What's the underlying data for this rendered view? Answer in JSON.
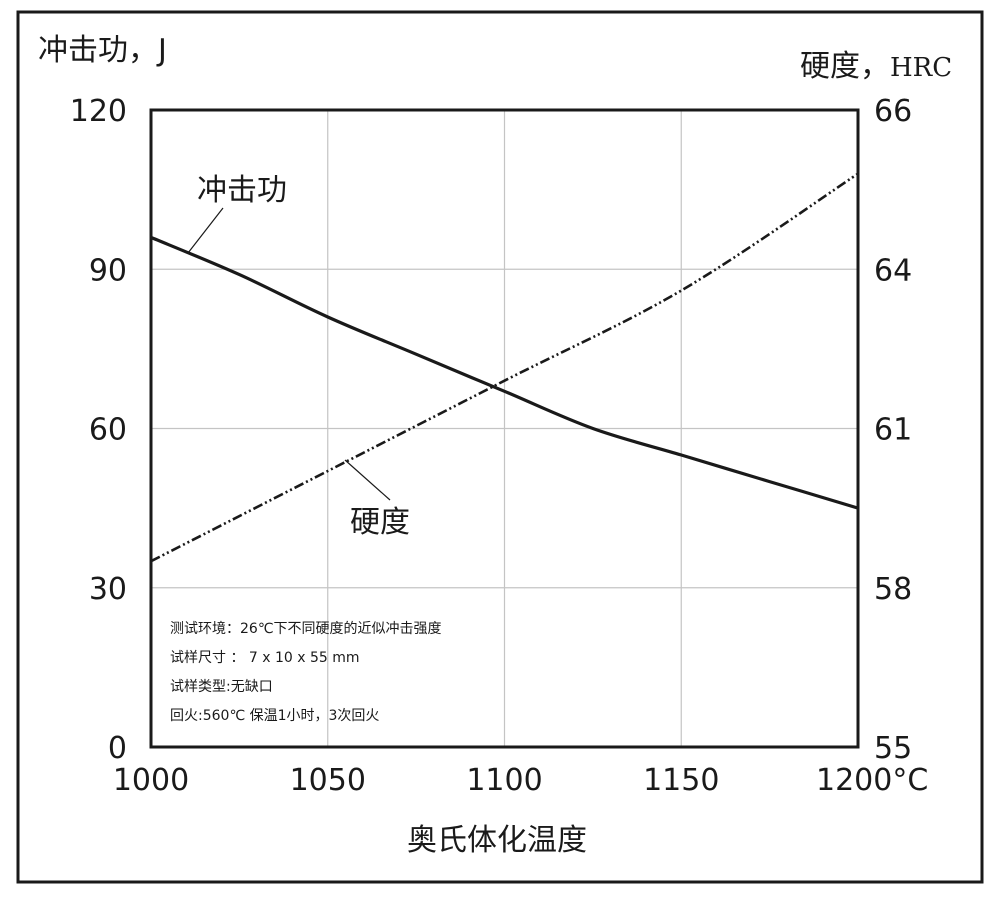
{
  "chart_data": {
    "type": "line",
    "xlabel": "奥氏体化温度",
    "x": [
      1000,
      1050,
      1100,
      1150,
      1200
    ],
    "x_ticks": [
      "1000",
      "1050",
      "1100",
      "1150",
      "1200°C"
    ],
    "xlim": [
      1000,
      1200
    ],
    "y_left": {
      "label": "冲击功，J",
      "label_main": "冲击功，",
      "label_unit": "J",
      "ticks": [
        "0",
        "30",
        "60",
        "90",
        "120"
      ],
      "lim": [
        0,
        120
      ]
    },
    "y_right": {
      "label": "硬度，HRC",
      "label_main": "硬度，",
      "label_unit": "HRC",
      "ticks": [
        "55",
        "58",
        "61",
        "64",
        "66"
      ],
      "tick_values": [
        55,
        58,
        61,
        64,
        66
      ]
    },
    "grid": true,
    "series": [
      {
        "name": "冲击功",
        "axis": "left",
        "style": "solid",
        "x": [
          1000,
          1025,
          1050,
          1075,
          1100,
          1125,
          1150,
          1175,
          1200
        ],
        "values": [
          96,
          89,
          81,
          74,
          67,
          60,
          55,
          50,
          45
        ]
      },
      {
        "name": "硬度",
        "axis": "right",
        "style": "dash-dot-dot",
        "x": [
          1000,
          1050,
          1100,
          1150,
          1200
        ],
        "values": [
          58.5,
          60.2,
          61.9,
          63.6,
          65.2
        ]
      }
    ],
    "annotations": [
      "测试环境：26℃下不同硬度的近似冲击强度",
      "试样尺寸 ： 7 x 10 x 55 mm",
      "试样类型:无缺口",
      "回火:560℃ 保温1小时，3次回火"
    ]
  }
}
